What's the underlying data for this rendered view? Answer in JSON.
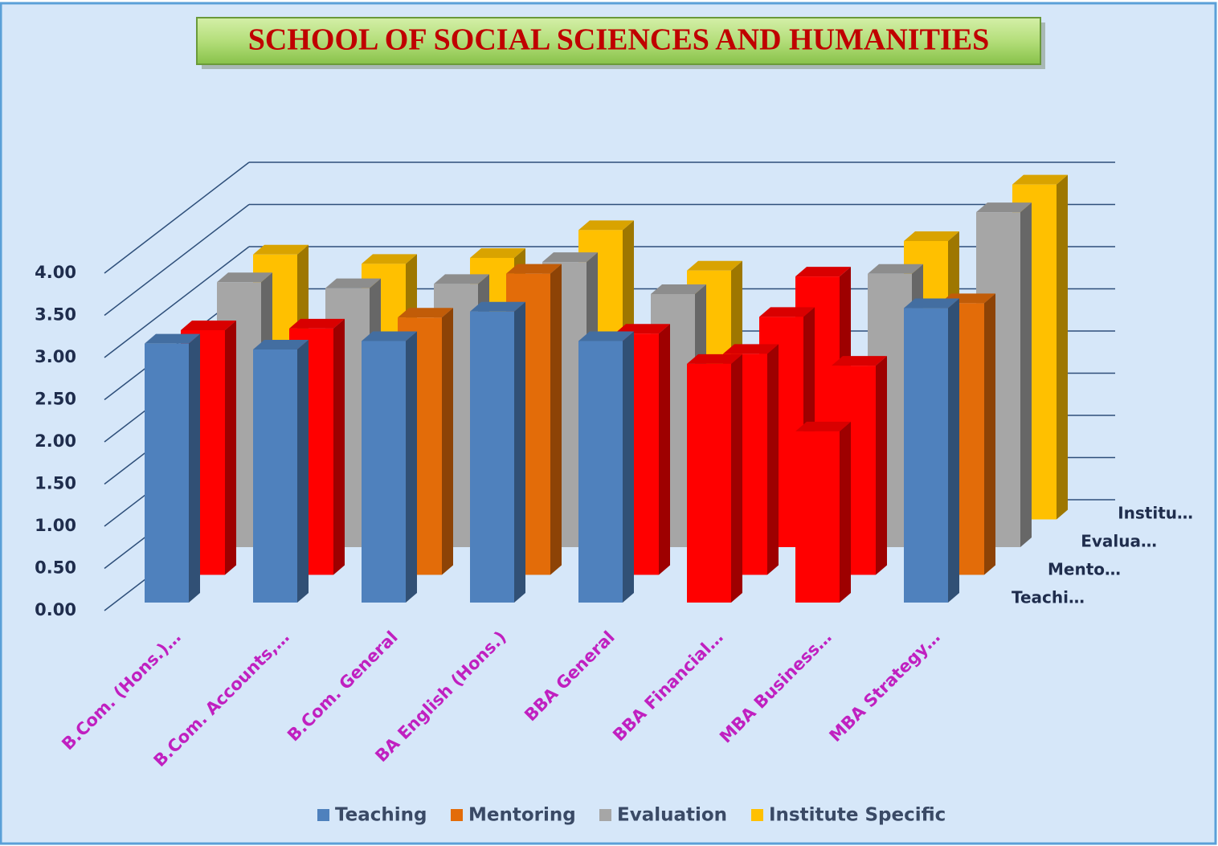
{
  "chart_data": {
    "type": "bar3d",
    "title": "SCHOOL OF SOCIAL SCIENCES AND HUMANITIES",
    "categories": [
      "B.Com. (Hons.)…",
      "B.Com. Accounts,…",
      "B.Com. General",
      "BA English (Hons.)",
      "BBA  General",
      "BBA Financial…",
      "MBA Business…",
      "MBA Strategy…"
    ],
    "depth_labels": [
      "Teachi…",
      "Mento…",
      "Evalua…",
      "Institu…"
    ],
    "series": [
      {
        "name": "Teaching",
        "color": "#4f81bd",
        "values": [
          3.07,
          3.0,
          3.1,
          3.45,
          3.1,
          2.83,
          2.03,
          3.49
        ],
        "colors": [
          "#4f81bd",
          "#4f81bd",
          "#4f81bd",
          "#4f81bd",
          "#4f81bd",
          "#ff0000",
          "#ff0000",
          "#4f81bd"
        ]
      },
      {
        "name": "Mentoring",
        "color": "#e36c09",
        "values": [
          2.9,
          2.92,
          3.05,
          3.57,
          2.86,
          2.62,
          2.48,
          3.22
        ],
        "colors": [
          "#ff0000",
          "#ff0000",
          "#e36c09",
          "#e36c09",
          "#ff0000",
          "#ff0000",
          "#ff0000",
          "#e36c09"
        ]
      },
      {
        "name": "Evaluation",
        "color": "#a6a6a6",
        "values": [
          3.14,
          3.07,
          3.12,
          3.38,
          3.0,
          2.73,
          3.24,
          3.97
        ],
        "colors": [
          "#a6a6a6",
          "#a6a6a6",
          "#a6a6a6",
          "#a6a6a6",
          "#a6a6a6",
          "#ff0000",
          "#a6a6a6",
          "#a6a6a6"
        ]
      },
      {
        "name": "Institute Specific",
        "color": "#ffc000",
        "values": [
          3.14,
          3.03,
          3.1,
          3.43,
          2.95,
          2.88,
          3.3,
          3.97
        ],
        "colors": [
          "#ffc000",
          "#ffc000",
          "#ffc000",
          "#ffc000",
          "#ffc000",
          "#ff0000",
          "#ffc000",
          "#ffc000"
        ]
      }
    ],
    "ylim": [
      0,
      4
    ],
    "yticks": [
      {
        "value": 0,
        "label": "0.00"
      },
      {
        "value": 0.5,
        "label": "0.50"
      },
      {
        "value": 1,
        "label": "1.00"
      },
      {
        "value": 1.5,
        "label": "1.50"
      },
      {
        "value": 2,
        "label": "2.00"
      },
      {
        "value": 2.5,
        "label": "2.50"
      },
      {
        "value": 3,
        "label": "3.00"
      },
      {
        "value": 3.5,
        "label": "3.50"
      },
      {
        "value": 4,
        "label": "4.00"
      }
    ],
    "grid": true,
    "legend": "bottom"
  }
}
